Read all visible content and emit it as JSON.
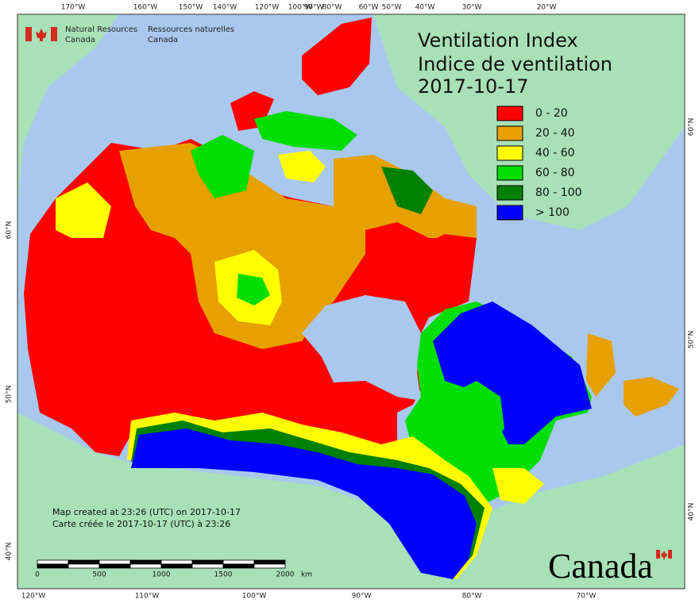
{
  "header": {
    "agency_en": [
      "Natural Resources",
      "Canada"
    ],
    "agency_fr": [
      "Ressources naturelles",
      "Canada"
    ]
  },
  "title": [
    "Ventilation Index",
    "Indice de ventilation",
    "2017-10-17"
  ],
  "legend": [
    {
      "label": "0 - 20",
      "color": "#ff0000"
    },
    {
      "label": "20 - 40",
      "color": "#e6a000"
    },
    {
      "label": "40 - 60",
      "color": "#ffff00"
    },
    {
      "label": "60 - 80",
      "color": "#00dd00"
    },
    {
      "label": "80 - 100",
      "color": "#008000"
    },
    {
      "label": "> 100",
      "color": "#0000ff"
    }
  ],
  "top_longitudes": [
    "170°W",
    "160°W",
    "150°W",
    "140°W",
    "120°W",
    "100°W",
    "90°W",
    "80°W",
    "60°W",
    "50°W",
    "40°W",
    "30°W",
    "20°W"
  ],
  "bottom_longitudes": [
    "120°W",
    "110°W",
    "100°W",
    "90°W",
    "80°W",
    "70°W"
  ],
  "left_latitudes": [
    "60°N",
    "50°N",
    "40°N"
  ],
  "right_latitudes": [
    "60°N",
    "50°N",
    "40°N"
  ],
  "credits": [
    "Map created at 23:26 (UTC) on 2017-10-17",
    "Carte créée le 2017-10-17 (UTC) à 23:26"
  ],
  "scale_bar": {
    "labels": [
      "0",
      "500",
      "1000",
      "1500",
      "2000"
    ],
    "unit": "km"
  },
  "wordmark": "Canada"
}
